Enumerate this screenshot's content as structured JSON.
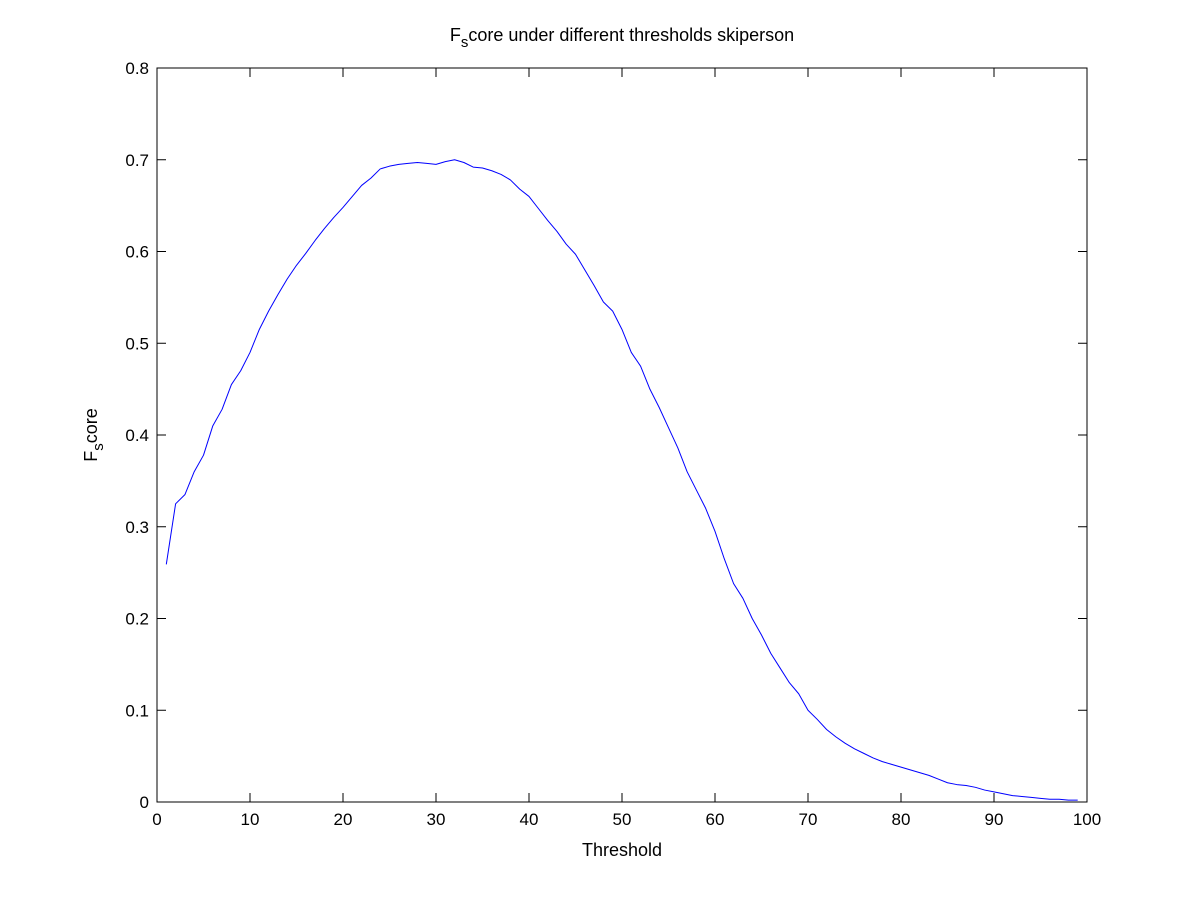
{
  "chart_data": {
    "type": "line",
    "title": {
      "parts": [
        {
          "text": "F",
          "sub": false
        },
        {
          "text": "s",
          "sub": true
        },
        {
          "text": "core under different thresholds skiperson",
          "sub": false
        }
      ]
    },
    "xlabel": "Threshold",
    "ylabel": {
      "parts": [
        {
          "text": "F",
          "sub": false
        },
        {
          "text": "s",
          "sub": true
        },
        {
          "text": "core",
          "sub": false
        }
      ]
    },
    "xlim": [
      0,
      100
    ],
    "ylim": [
      0,
      0.8
    ],
    "xticks": [
      0,
      10,
      20,
      30,
      40,
      50,
      60,
      70,
      80,
      90,
      100
    ],
    "xtick_labels": [
      "0",
      "10",
      "20",
      "30",
      "40",
      "50",
      "60",
      "70",
      "80",
      "90",
      "100"
    ],
    "yticks": [
      0,
      0.1,
      0.2,
      0.3,
      0.4,
      0.5,
      0.6,
      0.7,
      0.8
    ],
    "ytick_labels": [
      "0",
      "0.1",
      "0.2",
      "0.3",
      "0.4",
      "0.5",
      "0.6",
      "0.7",
      "0.8"
    ],
    "grid": false,
    "line_color": "#0000ff",
    "series": [
      {
        "x": [
          1,
          2,
          3,
          4,
          5,
          6,
          7,
          8,
          9,
          10,
          11,
          12,
          13,
          14,
          15,
          16,
          17,
          18,
          19,
          20,
          21,
          22,
          23,
          24,
          25,
          26,
          27,
          28,
          29,
          30,
          31,
          32,
          33,
          34,
          35,
          36,
          37,
          38,
          39,
          40,
          41,
          42,
          43,
          44,
          45,
          46,
          47,
          48,
          49,
          50,
          51,
          52,
          53,
          54,
          55,
          56,
          57,
          58,
          59,
          60,
          61,
          62,
          63,
          64,
          65,
          66,
          67,
          68,
          69,
          70,
          71,
          72,
          73,
          74,
          75,
          76,
          77,
          78,
          79,
          80,
          81,
          82,
          83,
          84,
          85,
          86,
          87,
          88,
          89,
          90,
          91,
          92,
          93,
          94,
          95,
          96,
          97,
          98,
          99
        ],
        "y": [
          0.259,
          0.325,
          0.335,
          0.36,
          0.378,
          0.41,
          0.428,
          0.455,
          0.47,
          0.49,
          0.515,
          0.535,
          0.553,
          0.57,
          0.585,
          0.598,
          0.612,
          0.625,
          0.637,
          0.648,
          0.66,
          0.672,
          0.68,
          0.69,
          0.693,
          0.695,
          0.696,
          0.697,
          0.696,
          0.695,
          0.698,
          0.7,
          0.697,
          0.692,
          0.691,
          0.688,
          0.684,
          0.678,
          0.668,
          0.66,
          0.647,
          0.634,
          0.622,
          0.608,
          0.597,
          0.58,
          0.563,
          0.545,
          0.535,
          0.515,
          0.49,
          0.475,
          0.45,
          0.43,
          0.408,
          0.386,
          0.36,
          0.34,
          0.32,
          0.295,
          0.265,
          0.238,
          0.222,
          0.2,
          0.182,
          0.162,
          0.146,
          0.13,
          0.118,
          0.1,
          0.09,
          0.079,
          0.071,
          0.064,
          0.058,
          0.053,
          0.048,
          0.044,
          0.041,
          0.038,
          0.035,
          0.032,
          0.029,
          0.025,
          0.021,
          0.019,
          0.018,
          0.016,
          0.013,
          0.011,
          0.009,
          0.007,
          0.006,
          0.005,
          0.004,
          0.003,
          0.003,
          0.002,
          0.002
        ]
      }
    ]
  }
}
